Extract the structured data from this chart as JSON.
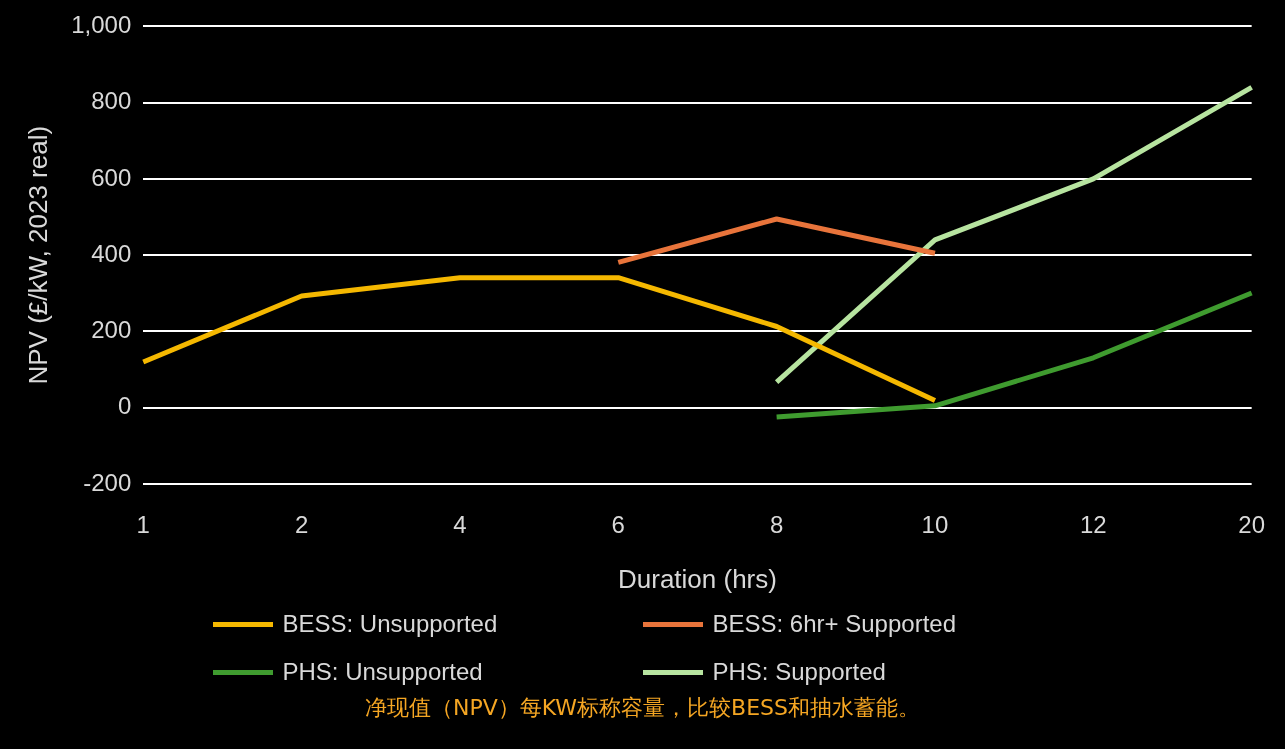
{
  "chart_data": {
    "type": "line",
    "xlabel": "Duration (hrs)",
    "ylabel": "NPV (£/kW, 2023 real)",
    "categories": [
      "1",
      "2",
      "4",
      "6",
      "8",
      "10",
      "12",
      "20"
    ],
    "ylim": [
      -200,
      1000
    ],
    "yticks": [
      -200,
      0,
      200,
      400,
      600,
      800,
      {
        "value": 1000,
        "label": "1,000"
      }
    ],
    "grid": "y",
    "legend": "bottom",
    "marker": "none",
    "line_style": "solid",
    "annotations": [
      "净现值（NPV）每KW标称容量，比较BESS和抽水蓄能。"
    ],
    "series": [
      {
        "name": "BESS: Unsupported",
        "color": "#f5b800",
        "values": [
          120,
          293,
          341,
          341,
          213,
          19,
          null,
          null
        ]
      },
      {
        "name": "BESS: 6hr+ Supported",
        "color": "#e8743b",
        "values": [
          null,
          null,
          null,
          381,
          495,
          405,
          null,
          null
        ]
      },
      {
        "name": "PHS: Unsupported",
        "color": "#3f9b2f",
        "values": [
          null,
          null,
          null,
          null,
          -24,
          5,
          131,
          301
        ]
      },
      {
        "name": "PHS: Supported",
        "color": "#b7e4a0",
        "values": [
          null,
          null,
          null,
          null,
          67,
          440,
          600,
          840
        ]
      }
    ]
  }
}
